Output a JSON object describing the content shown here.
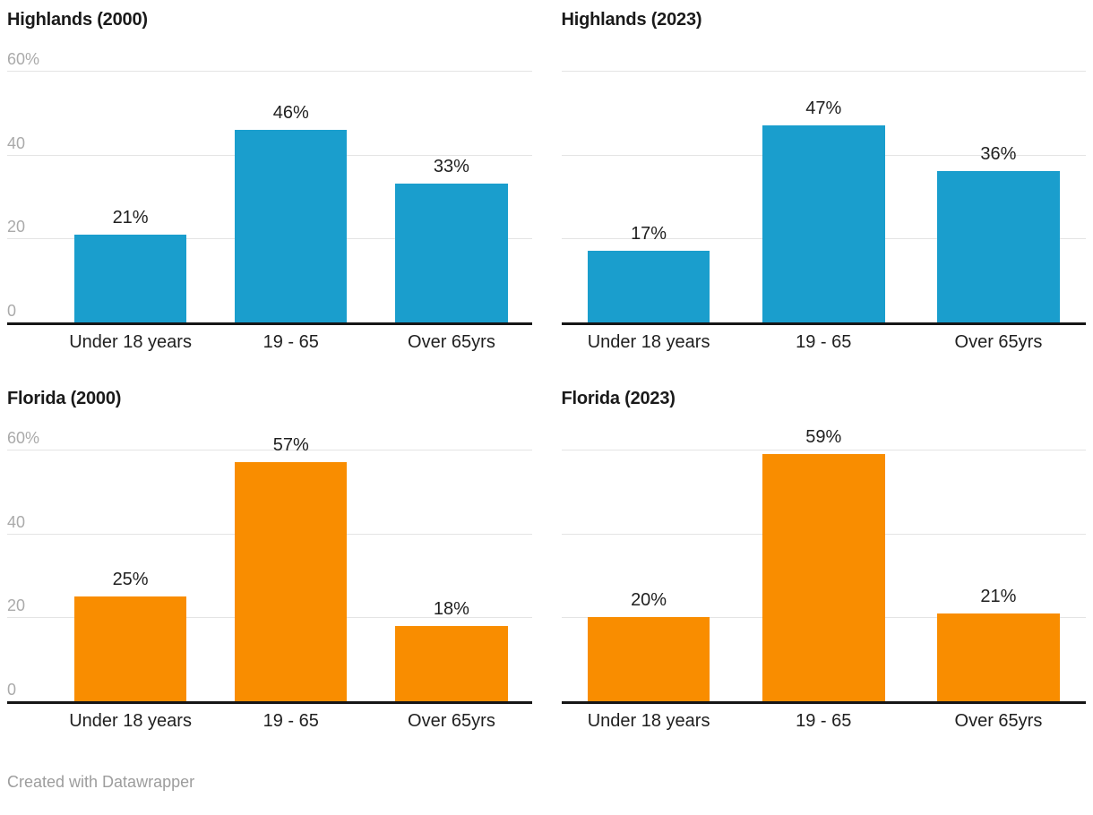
{
  "page": {
    "background": "#ffffff",
    "footer": "Created with Datawrapper"
  },
  "colors": {
    "blue": "#1a9ecd",
    "orange": "#f98d00",
    "gridline": "#e4e4e4",
    "baseline": "#161616",
    "tick_label": "#aaaaaa",
    "label_text": "#1f1f1f",
    "footer_text": "#9d9d9d"
  },
  "axis": {
    "suffix": "%",
    "max": 60,
    "tick_values": [
      60,
      40,
      20,
      0
    ],
    "tick_labels": [
      "60%",
      "40",
      "20",
      "0"
    ]
  },
  "chart_data": [
    {
      "type": "bar",
      "title": "Highlands (2000)",
      "categories": [
        "Under 18 years",
        "19 - 65",
        "Over 65yrs"
      ],
      "values": [
        21,
        46,
        33
      ],
      "value_labels": [
        "21%",
        "46%",
        "33%"
      ],
      "bar_color": "#1a9ecd",
      "ylim": [
        0,
        60
      ],
      "grid": true,
      "show_y_tick_labels": true
    },
    {
      "type": "bar",
      "title": "Highlands (2023)",
      "categories": [
        "Under 18 years",
        "19 - 65",
        "Over 65yrs"
      ],
      "values": [
        17,
        47,
        36
      ],
      "value_labels": [
        "17%",
        "47%",
        "36%"
      ],
      "bar_color": "#1a9ecd",
      "ylim": [
        0,
        60
      ],
      "grid": true,
      "show_y_tick_labels": false
    },
    {
      "type": "bar",
      "title": "Florida (2000)",
      "categories": [
        "Under 18 years",
        "19 - 65",
        "Over 65yrs"
      ],
      "values": [
        25,
        57,
        18
      ],
      "value_labels": [
        "25%",
        "57%",
        "18%"
      ],
      "bar_color": "#f98d00",
      "ylim": [
        0,
        60
      ],
      "grid": true,
      "show_y_tick_labels": true
    },
    {
      "type": "bar",
      "title": "Florida (2023)",
      "categories": [
        "Under 18 years",
        "19 - 65",
        "Over 65yrs"
      ],
      "values": [
        20,
        59,
        21
      ],
      "value_labels": [
        "20%",
        "59%",
        "21%"
      ],
      "bar_color": "#f98d00",
      "ylim": [
        0,
        60
      ],
      "grid": true,
      "show_y_tick_labels": false
    }
  ]
}
